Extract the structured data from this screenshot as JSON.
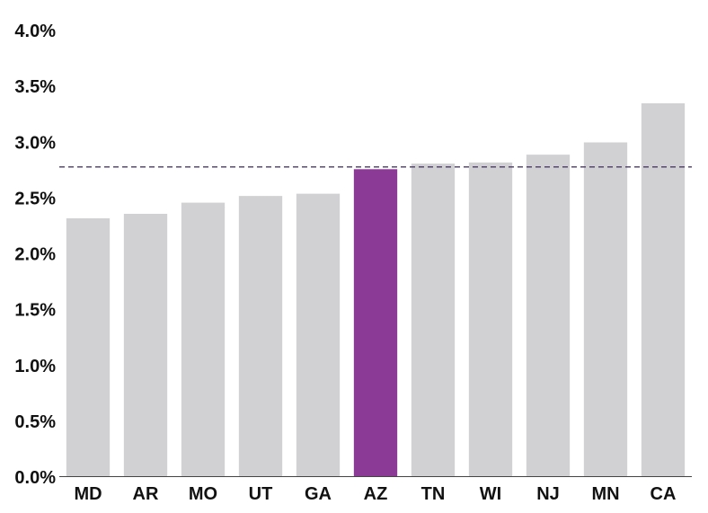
{
  "chart_data": {
    "type": "bar",
    "categories": [
      "MD",
      "AR",
      "MO",
      "UT",
      "GA",
      "AZ",
      "TN",
      "WI",
      "NJ",
      "MN",
      "CA"
    ],
    "values": [
      2.31,
      2.35,
      2.45,
      2.51,
      2.53,
      2.75,
      2.8,
      2.81,
      2.88,
      2.99,
      3.34
    ],
    "highlight": "AZ",
    "reference_line": 2.77,
    "ylim": [
      0,
      4.0
    ],
    "yticks": [
      "0.0%",
      "0.5%",
      "1.0%",
      "1.5%",
      "2.0%",
      "2.5%",
      "3.0%",
      "3.5%",
      "4.0%"
    ],
    "title": "",
    "xlabel": "",
    "ylabel": "",
    "grid": false,
    "colors": {
      "bar": "#d1d1d3",
      "highlight": "#8b3a96",
      "reference_line": "#4a3a6a",
      "axis": "#444444"
    }
  }
}
